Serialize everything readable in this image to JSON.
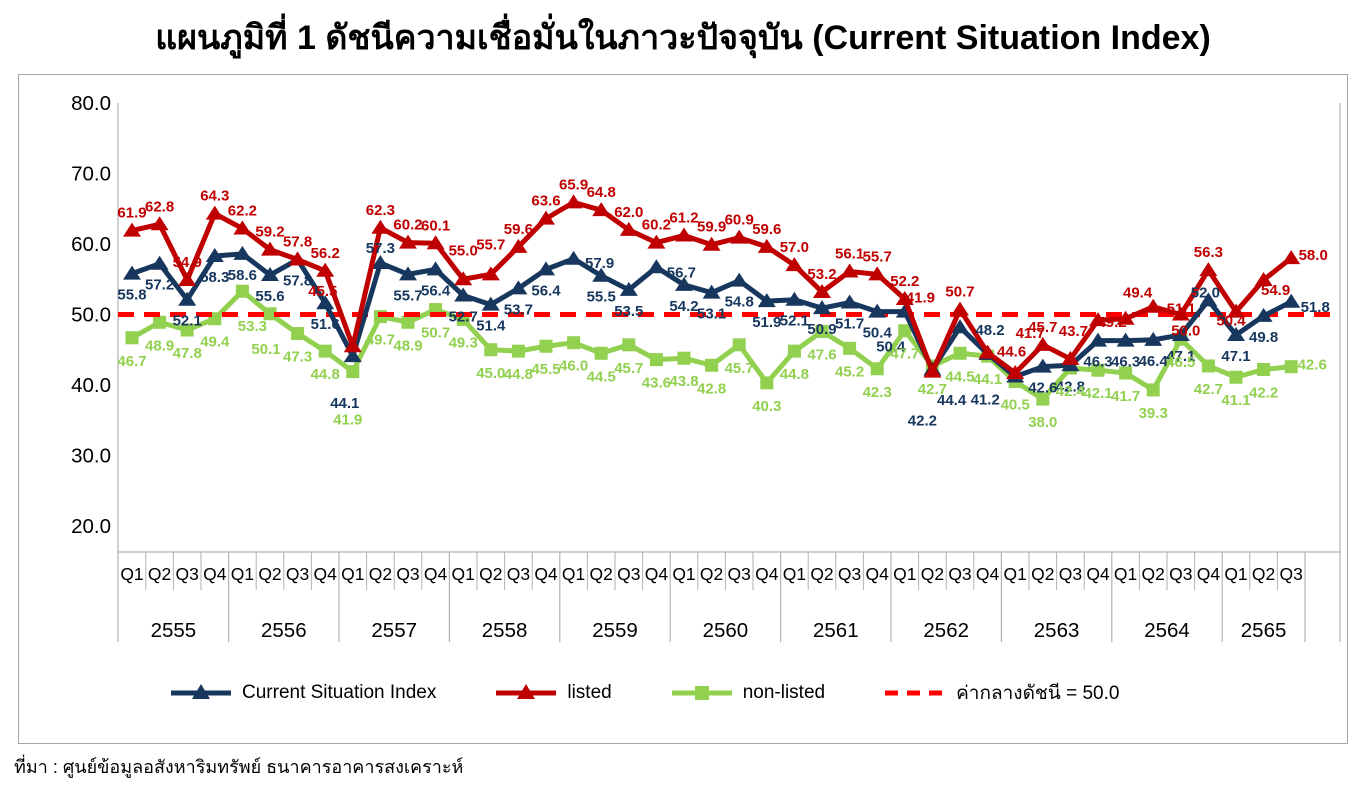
{
  "title": "แผนภูมิที่ 1 ดัชนีความเชื่อมั่นในภาวะปัจจุบัน (Current Situation Index)",
  "source": "ที่มา : ศูนย์ข้อมูลอสังหาริมทรัพย์ ธนาคารอาคารสงเคราะห์",
  "chart_data": {
    "type": "line",
    "title": "แผนภูมิที่ 1 ดัชนีความเชื่อมั่นในภาวะปัจจุบัน (Current Situation Index)",
    "ylim": [
      20,
      80
    ],
    "y_ticks": [
      "80.0",
      "70.0",
      "60.0",
      "50.0",
      "40.0",
      "30.0",
      "20.0"
    ],
    "grid": "off",
    "legend_position": "bottom",
    "x_axis": {
      "years": [
        {
          "label": "2555",
          "quarters": [
            "Q1",
            "Q2",
            "Q3",
            "Q4"
          ]
        },
        {
          "label": "2556",
          "quarters": [
            "Q1",
            "Q2",
            "Q3",
            "Q4"
          ]
        },
        {
          "label": "2557",
          "quarters": [
            "Q1",
            "Q2",
            "Q3",
            "Q4"
          ]
        },
        {
          "label": "2558",
          "quarters": [
            "Q1",
            "Q2",
            "Q3",
            "Q4"
          ]
        },
        {
          "label": "2559",
          "quarters": [
            "Q1",
            "Q2",
            "Q3",
            "Q4"
          ]
        },
        {
          "label": "2560",
          "quarters": [
            "Q1",
            "Q2",
            "Q3",
            "Q4"
          ]
        },
        {
          "label": "2561",
          "quarters": [
            "Q1",
            "Q2",
            "Q3",
            "Q4"
          ]
        },
        {
          "label": "2562",
          "quarters": [
            "Q1",
            "Q2",
            "Q3",
            "Q4"
          ]
        },
        {
          "label": "2563",
          "quarters": [
            "Q1",
            "Q2",
            "Q3",
            "Q4"
          ]
        },
        {
          "label": "2564",
          "quarters": [
            "Q1",
            "Q2",
            "Q3",
            "Q4"
          ]
        },
        {
          "label": "2565",
          "quarters": [
            "Q1",
            "Q2",
            "Q3"
          ]
        }
      ]
    },
    "reference_line": {
      "value": 50.0,
      "label": "ค่ากลางดัชนี = 50.0",
      "color": "#FF0000",
      "style": "dashed"
    },
    "series": [
      {
        "name": "Current Situation Index",
        "color": "#17375E",
        "marker": "triangle",
        "values": [
          55.8,
          57.2,
          52.1,
          58.3,
          58.6,
          55.6,
          57.8,
          51.6,
          44.1,
          57.3,
          55.7,
          56.4,
          52.7,
          51.4,
          53.7,
          56.4,
          57.9,
          55.5,
          53.5,
          56.7,
          54.2,
          53.1,
          54.8,
          51.9,
          52.1,
          50.9,
          51.7,
          50.4,
          50.4,
          42.2,
          48.2,
          44.4,
          41.2,
          42.6,
          42.8,
          46.3,
          46.3,
          46.4,
          47.1,
          52.0,
          47.1,
          49.8,
          51.8
        ]
      },
      {
        "name": "listed",
        "color": "#C00000",
        "marker": "triangle",
        "values": [
          61.9,
          62.8,
          54.9,
          64.3,
          62.2,
          59.2,
          57.8,
          56.2,
          45.5,
          62.3,
          60.2,
          60.1,
          55.0,
          55.7,
          59.6,
          63.6,
          65.9,
          64.8,
          62.0,
          60.2,
          61.2,
          59.9,
          60.9,
          59.6,
          57.0,
          53.2,
          56.1,
          55.7,
          52.2,
          41.9,
          50.7,
          44.6,
          41.7,
          45.7,
          43.7,
          49.2,
          49.4,
          51.1,
          50.0,
          56.3,
          50.4,
          54.9,
          58.0
        ]
      },
      {
        "name": "non-listed",
        "color": "#92D050",
        "marker": "square",
        "values": [
          46.7,
          48.9,
          47.8,
          49.4,
          53.3,
          50.1,
          47.3,
          44.8,
          41.9,
          49.7,
          48.9,
          50.7,
          49.3,
          45.0,
          44.8,
          45.5,
          46.0,
          44.5,
          45.7,
          43.6,
          43.8,
          42.8,
          45.7,
          40.3,
          44.8,
          47.6,
          45.2,
          42.3,
          47.7,
          42.7,
          44.5,
          44.1,
          40.5,
          38.0,
          42.4,
          42.1,
          41.7,
          39.3,
          46.5,
          42.7,
          41.1,
          42.2,
          42.6
        ]
      }
    ]
  }
}
